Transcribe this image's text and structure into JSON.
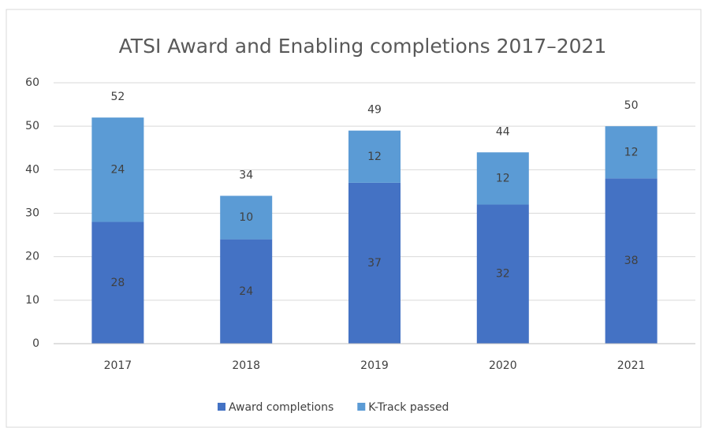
{
  "chart_data": {
    "type": "stacked_bar",
    "title": "ATSI Award and Enabling completions 2017–2021",
    "categories": [
      "2017",
      "2018",
      "2019",
      "2020",
      "2021"
    ],
    "series": [
      {
        "name": "Award completions",
        "color": "#4472c4",
        "values": [
          28,
          24,
          37,
          32,
          38
        ]
      },
      {
        "name": "K-Track passed",
        "color": "#5b9bd5",
        "values": [
          24,
          10,
          12,
          12,
          12
        ]
      }
    ],
    "totals": [
      52,
      34,
      49,
      44,
      50
    ],
    "ylim": [
      0,
      60
    ],
    "yticks": [
      0,
      10,
      20,
      30,
      40,
      50,
      60
    ],
    "grid": true,
    "legend": "bottom"
  }
}
